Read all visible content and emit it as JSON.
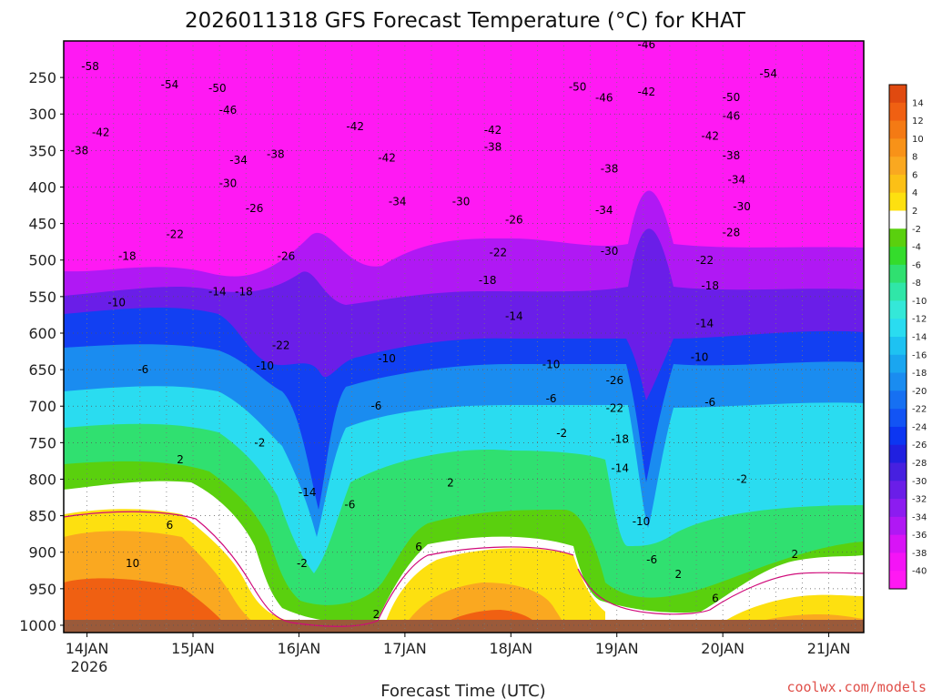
{
  "chart_data": {
    "type": "heatmap",
    "title": "2026011318 GFS Forecast Temperature (°C) for KHAT",
    "xlabel": "Forecast Time (UTC)",
    "ylabel": "",
    "credit": "coolwx.com/models",
    "x_ticks": [
      "14JAN",
      "15JAN",
      "16JAN",
      "17JAN",
      "18JAN",
      "19JAN",
      "20JAN",
      "21JAN"
    ],
    "x_year_label": "2026",
    "x_range_days": [
      0,
      7.55
    ],
    "y_ticks": [
      "250",
      "300",
      "350",
      "400",
      "450",
      "500",
      "550",
      "600",
      "650",
      "700",
      "750",
      "800",
      "850",
      "900",
      "950",
      "1000"
    ],
    "y_range_hpa": [
      200,
      1010
    ],
    "colorbar": {
      "labels": [
        "14",
        "12",
        "10",
        "8",
        "6",
        "4",
        "2",
        "-2",
        "-4",
        "-6",
        "-8",
        "-10",
        "-12",
        "-14",
        "-16",
        "-18",
        "-20",
        "-22",
        "-24",
        "-26",
        "-28",
        "-30",
        "-32",
        "-34",
        "-36",
        "-38",
        "-40"
      ],
      "colors": [
        "#e04a10",
        "#f06012",
        "#f47a14",
        "#f89218",
        "#faa820",
        "#fcc016",
        "#fde010",
        "#ffffff",
        "#5ad00e",
        "#34dc2c",
        "#30e070",
        "#30e6a8",
        "#34e8d8",
        "#2adcf0",
        "#1ec2f2",
        "#1aa6f0",
        "#1a8cf0",
        "#1670f2",
        "#1254f4",
        "#0c36f2",
        "#2020e0",
        "#4620e0",
        "#6a1ee8",
        "#8c1cf0",
        "#b018f4",
        "#d814f6",
        "#f414f6",
        "#ff19f3"
      ]
    },
    "contour_labels": [
      {
        "text": "-58",
        "day": 0.25,
        "p": 240
      },
      {
        "text": "-54",
        "day": 1.0,
        "p": 265
      },
      {
        "text": "-50",
        "day": 1.45,
        "p": 270
      },
      {
        "text": "-46",
        "day": 1.55,
        "p": 300
      },
      {
        "text": "-42",
        "day": 0.35,
        "p": 330
      },
      {
        "text": "-38",
        "day": 0.15,
        "p": 355
      },
      {
        "text": "-34",
        "day": 1.65,
        "p": 368
      },
      {
        "text": "-38",
        "day": 2.0,
        "p": 360
      },
      {
        "text": "-42",
        "day": 2.75,
        "p": 322
      },
      {
        "text": "-42",
        "day": 3.05,
        "p": 365
      },
      {
        "text": "-42",
        "day": 4.05,
        "p": 327
      },
      {
        "text": "-38",
        "day": 4.05,
        "p": 350
      },
      {
        "text": "-50",
        "day": 4.85,
        "p": 268
      },
      {
        "text": "-46",
        "day": 5.1,
        "p": 283
      },
      {
        "text": "-42",
        "day": 5.5,
        "p": 275
      },
      {
        "text": "-46",
        "day": 5.5,
        "p": 210
      },
      {
        "text": "-54",
        "day": 6.65,
        "p": 250
      },
      {
        "text": "-50",
        "day": 6.3,
        "p": 282
      },
      {
        "text": "-46",
        "day": 6.3,
        "p": 308
      },
      {
        "text": "-42",
        "day": 6.1,
        "p": 335
      },
      {
        "text": "-38",
        "day": 6.3,
        "p": 362
      },
      {
        "text": "-34",
        "day": 6.35,
        "p": 395
      },
      {
        "text": "-30",
        "day": 6.4,
        "p": 432
      },
      {
        "text": "-28",
        "day": 6.3,
        "p": 467
      },
      {
        "text": "-22",
        "day": 6.05,
        "p": 505
      },
      {
        "text": "-18",
        "day": 6.1,
        "p": 540
      },
      {
        "text": "-14",
        "day": 6.05,
        "p": 592
      },
      {
        "text": "-10",
        "day": 6.0,
        "p": 638
      },
      {
        "text": "-6",
        "day": 6.1,
        "p": 700
      },
      {
        "text": "-2",
        "day": 6.4,
        "p": 805
      },
      {
        "text": "2",
        "day": 6.9,
        "p": 908
      },
      {
        "text": "6",
        "day": 6.15,
        "p": 968
      },
      {
        "text": "2",
        "day": 5.8,
        "p": 935
      },
      {
        "text": "-6",
        "day": 5.55,
        "p": 915
      },
      {
        "text": "-10",
        "day": 5.45,
        "p": 863
      },
      {
        "text": "-14",
        "day": 5.25,
        "p": 790
      },
      {
        "text": "-18",
        "day": 5.25,
        "p": 750
      },
      {
        "text": "-22",
        "day": 5.2,
        "p": 708
      },
      {
        "text": "-26",
        "day": 5.2,
        "p": 670
      },
      {
        "text": "-30",
        "day": 5.15,
        "p": 493
      },
      {
        "text": "-34",
        "day": 5.1,
        "p": 437
      },
      {
        "text": "-38",
        "day": 5.15,
        "p": 380
      },
      {
        "text": "-26",
        "day": 4.25,
        "p": 450
      },
      {
        "text": "-30",
        "day": 3.75,
        "p": 425
      },
      {
        "text": "-34",
        "day": 3.15,
        "p": 425
      },
      {
        "text": "-22",
        "day": 4.1,
        "p": 495
      },
      {
        "text": "-18",
        "day": 4.0,
        "p": 533
      },
      {
        "text": "-14",
        "day": 4.25,
        "p": 582
      },
      {
        "text": "-10",
        "day": 4.6,
        "p": 648
      },
      {
        "text": "-10",
        "day": 3.05,
        "p": 640
      },
      {
        "text": "-6",
        "day": 4.6,
        "p": 695
      },
      {
        "text": "-6",
        "day": 2.95,
        "p": 705
      },
      {
        "text": "-2",
        "day": 4.7,
        "p": 742
      },
      {
        "text": "2",
        "day": 3.65,
        "p": 810
      },
      {
        "text": "6",
        "day": 3.35,
        "p": 898
      },
      {
        "text": "-6",
        "day": 2.7,
        "p": 840
      },
      {
        "text": "-2",
        "day": 2.25,
        "p": 920
      },
      {
        "text": "-14",
        "day": 2.3,
        "p": 823
      },
      {
        "text": "-22",
        "day": 2.05,
        "p": 622
      },
      {
        "text": "-26",
        "day": 2.1,
        "p": 500
      },
      {
        "text": "-10",
        "day": 1.9,
        "p": 650
      },
      {
        "text": "-18",
        "day": 1.7,
        "p": 548
      },
      {
        "text": "-26",
        "day": 1.8,
        "p": 434
      },
      {
        "text": "-30",
        "day": 1.55,
        "p": 400
      },
      {
        "text": "-22",
        "day": 1.05,
        "p": 470
      },
      {
        "text": "-18",
        "day": 0.6,
        "p": 500
      },
      {
        "text": "-14",
        "day": 1.45,
        "p": 548
      },
      {
        "text": "-10",
        "day": 0.5,
        "p": 563
      },
      {
        "text": "-6",
        "day": 0.75,
        "p": 655
      },
      {
        "text": "-2",
        "day": 1.85,
        "p": 755
      },
      {
        "text": "2",
        "day": 1.1,
        "p": 778
      },
      {
        "text": "6",
        "day": 1.0,
        "p": 868
      },
      {
        "text": "10",
        "day": 0.65,
        "p": 920
      },
      {
        "text": "2",
        "day": 2.95,
        "p": 990
      }
    ]
  }
}
